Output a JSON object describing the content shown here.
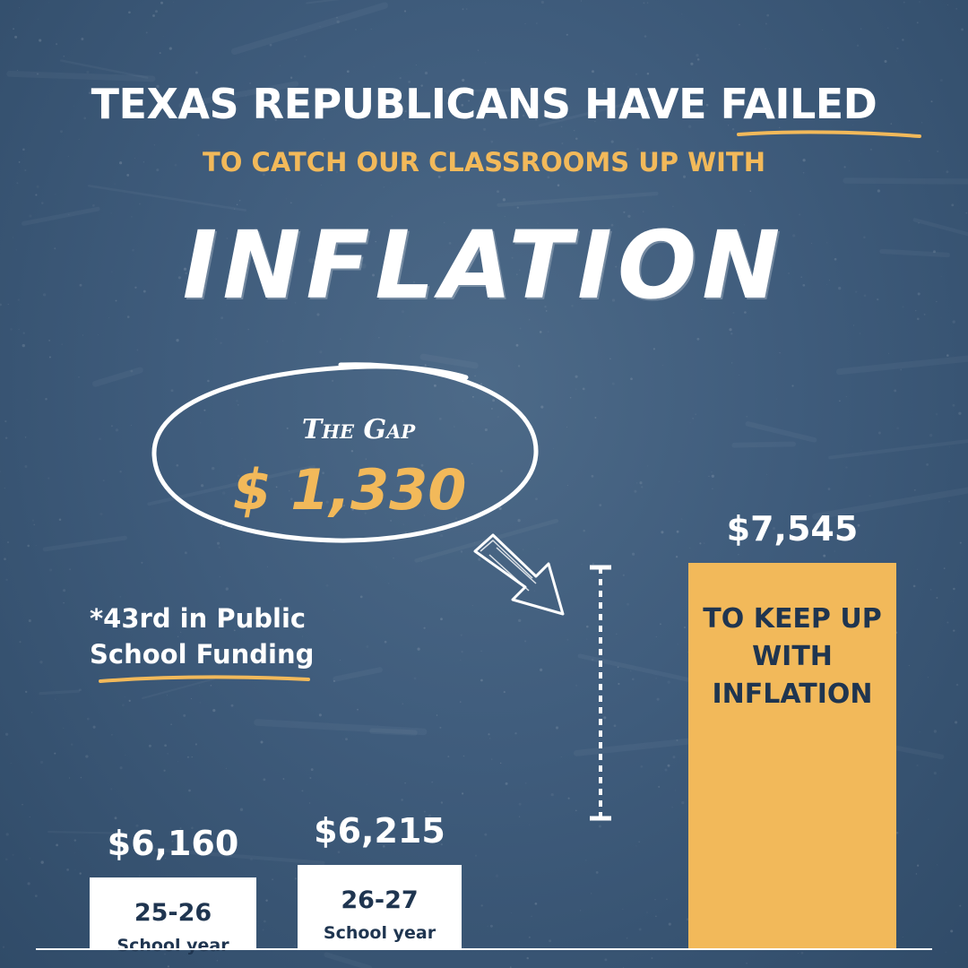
{
  "headline": {
    "prefix": "TEXAS REPUBLICANS HAVE",
    "emphasis": "FAILED"
  },
  "subhead": "TO CATCH OUR CLASSROOMS UP WITH",
  "big_word": "INFLATION",
  "gap": {
    "title": "The Gap",
    "value": "$ 1,330"
  },
  "rank_note": {
    "line1": "*43rd in Public",
    "line2": "School Funding"
  },
  "colors": {
    "accent": "#f2b95a",
    "white": "#ffffff",
    "dark_text": "#1f3550",
    "background": "#3f5c7c"
  },
  "chart_data": {
    "type": "bar",
    "categories": [
      "25-26",
      "26-27",
      ""
    ],
    "values": [
      6160,
      6215,
      7545
    ],
    "value_labels": [
      "$6,160",
      "$6,215",
      "$7,545"
    ],
    "category_sublabels": [
      "School year",
      "School year",
      ""
    ],
    "inner_labels": [
      "",
      "",
      "TO KEEP UP\nWITH\nINFLATION"
    ],
    "bar_colors": [
      "#ffffff",
      "#ffffff",
      "#f2b95a"
    ],
    "annotation": {
      "text": "The Gap",
      "value": 1330,
      "value_label": "$ 1,330"
    }
  }
}
